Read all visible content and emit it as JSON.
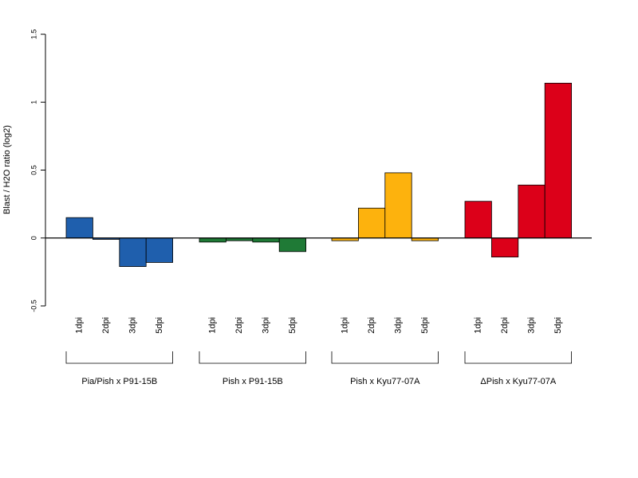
{
  "chart_data": {
    "type": "bar",
    "ylabel": "Blast / H2O ratio (log2)",
    "ylim": [
      -0.5,
      1.5
    ],
    "y_ticks": [
      "-0.5",
      "0",
      "0.5",
      "1",
      "1.5"
    ],
    "y_tick_values": [
      -0.5,
      0,
      0.5,
      1,
      1.5
    ],
    "grid": false,
    "legend": "none",
    "groups": [
      {
        "name": "Pia/Pish x P91-15B",
        "color": "#1f5fad",
        "categories": [
          "1dpi",
          "2dpi",
          "3dpi",
          "5dpi"
        ],
        "values": [
          0.15,
          -0.01,
          -0.21,
          -0.18
        ]
      },
      {
        "name": "Pish x P91-15B",
        "color": "#1f7a36",
        "categories": [
          "1dpi",
          "2dpi",
          "3dpi",
          "5dpi"
        ],
        "values": [
          -0.03,
          -0.02,
          -0.03,
          -0.1
        ]
      },
      {
        "name": "Pish x Kyu77-07A",
        "color": "#fdb20d",
        "categories": [
          "1dpi",
          "2dpi",
          "3dpi",
          "5dpi"
        ],
        "values": [
          -0.02,
          0.22,
          0.48,
          -0.02
        ]
      },
      {
        "name": "ΔPish x Kyu77-07A",
        "color": "#dc0019",
        "categories": [
          "1dpi",
          "2dpi",
          "3dpi",
          "5dpi"
        ],
        "values": [
          0.27,
          -0.14,
          0.39,
          1.14
        ]
      }
    ]
  }
}
